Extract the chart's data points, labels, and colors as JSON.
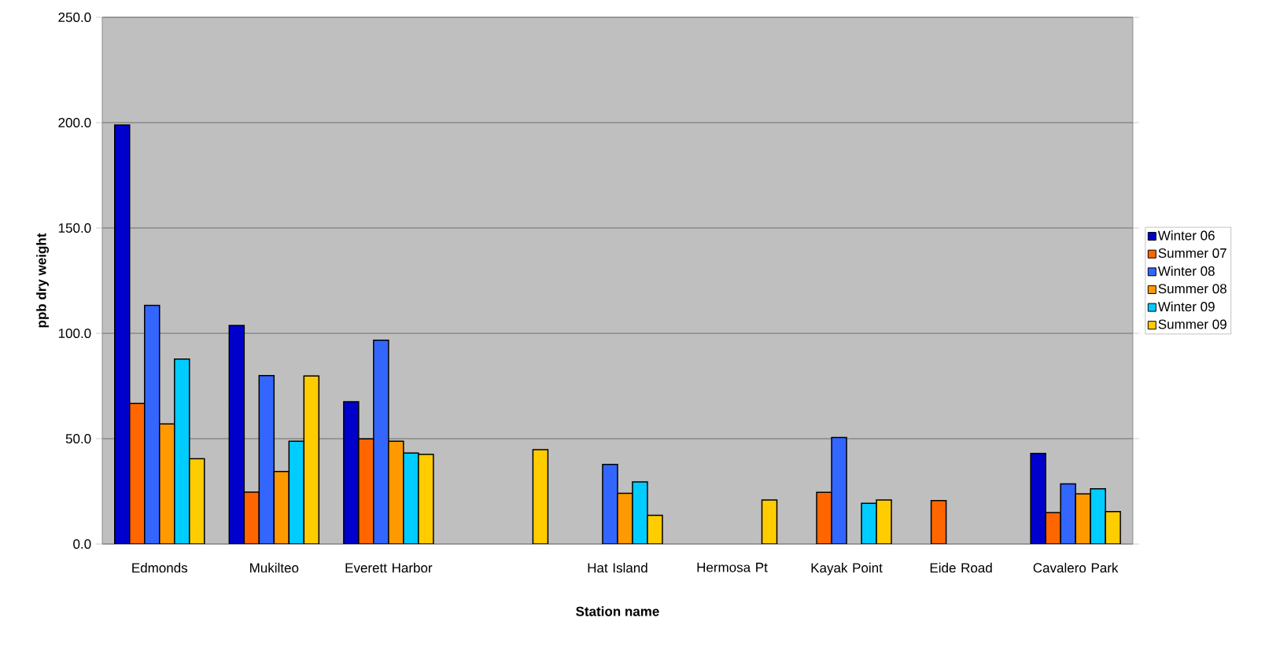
{
  "chart_data": {
    "type": "bar",
    "xlabel": "Station name",
    "ylabel": "ppb dry weight",
    "categories": [
      "Edmonds",
      "Mukilteo",
      "Everett Harbor",
      null,
      "Hat Island",
      "Hermosa Pt",
      "Kayak Point",
      "Eide Road",
      "Cavalero Park"
    ],
    "series": [
      {
        "name": "Winter 06",
        "color": "#0000cc",
        "values": [
          198.9,
          103.7,
          67.5,
          null,
          null,
          null,
          null,
          null,
          43.0
        ]
      },
      {
        "name": "Summer 07",
        "color": "#ff6600",
        "values": [
          66.7,
          24.6,
          49.9,
          null,
          null,
          null,
          24.5,
          20.6,
          14.9
        ]
      },
      {
        "name": "Winter 08",
        "color": "#3366ff",
        "values": [
          113.2,
          79.9,
          96.7,
          null,
          37.8,
          null,
          50.6,
          null,
          28.5
        ]
      },
      {
        "name": "Summer 08",
        "color": "#ff9900",
        "values": [
          57.0,
          34.4,
          48.8,
          null,
          24.1,
          null,
          null,
          null,
          23.8
        ]
      },
      {
        "name": "Winter 09",
        "color": "#00ccff",
        "values": [
          87.8,
          48.8,
          43.2,
          null,
          29.5,
          null,
          19.3,
          null,
          26.2
        ]
      },
      {
        "name": "Summer 09",
        "color": "#ffcc00",
        "values": [
          40.5,
          79.8,
          42.5,
          44.8,
          13.6,
          20.9,
          20.9,
          null,
          15.4
        ]
      }
    ],
    "ylim": [
      0,
      250
    ],
    "yticks": [
      {
        "value": 0,
        "label": "0.0"
      },
      {
        "value": 50,
        "label": "50.0"
      },
      {
        "value": 100,
        "label": "100.0"
      },
      {
        "value": 150,
        "label": "150.0"
      },
      {
        "value": 200,
        "label": "200.0"
      },
      {
        "value": 250,
        "label": "250.0"
      }
    ],
    "grid": "y",
    "legend": "right"
  }
}
